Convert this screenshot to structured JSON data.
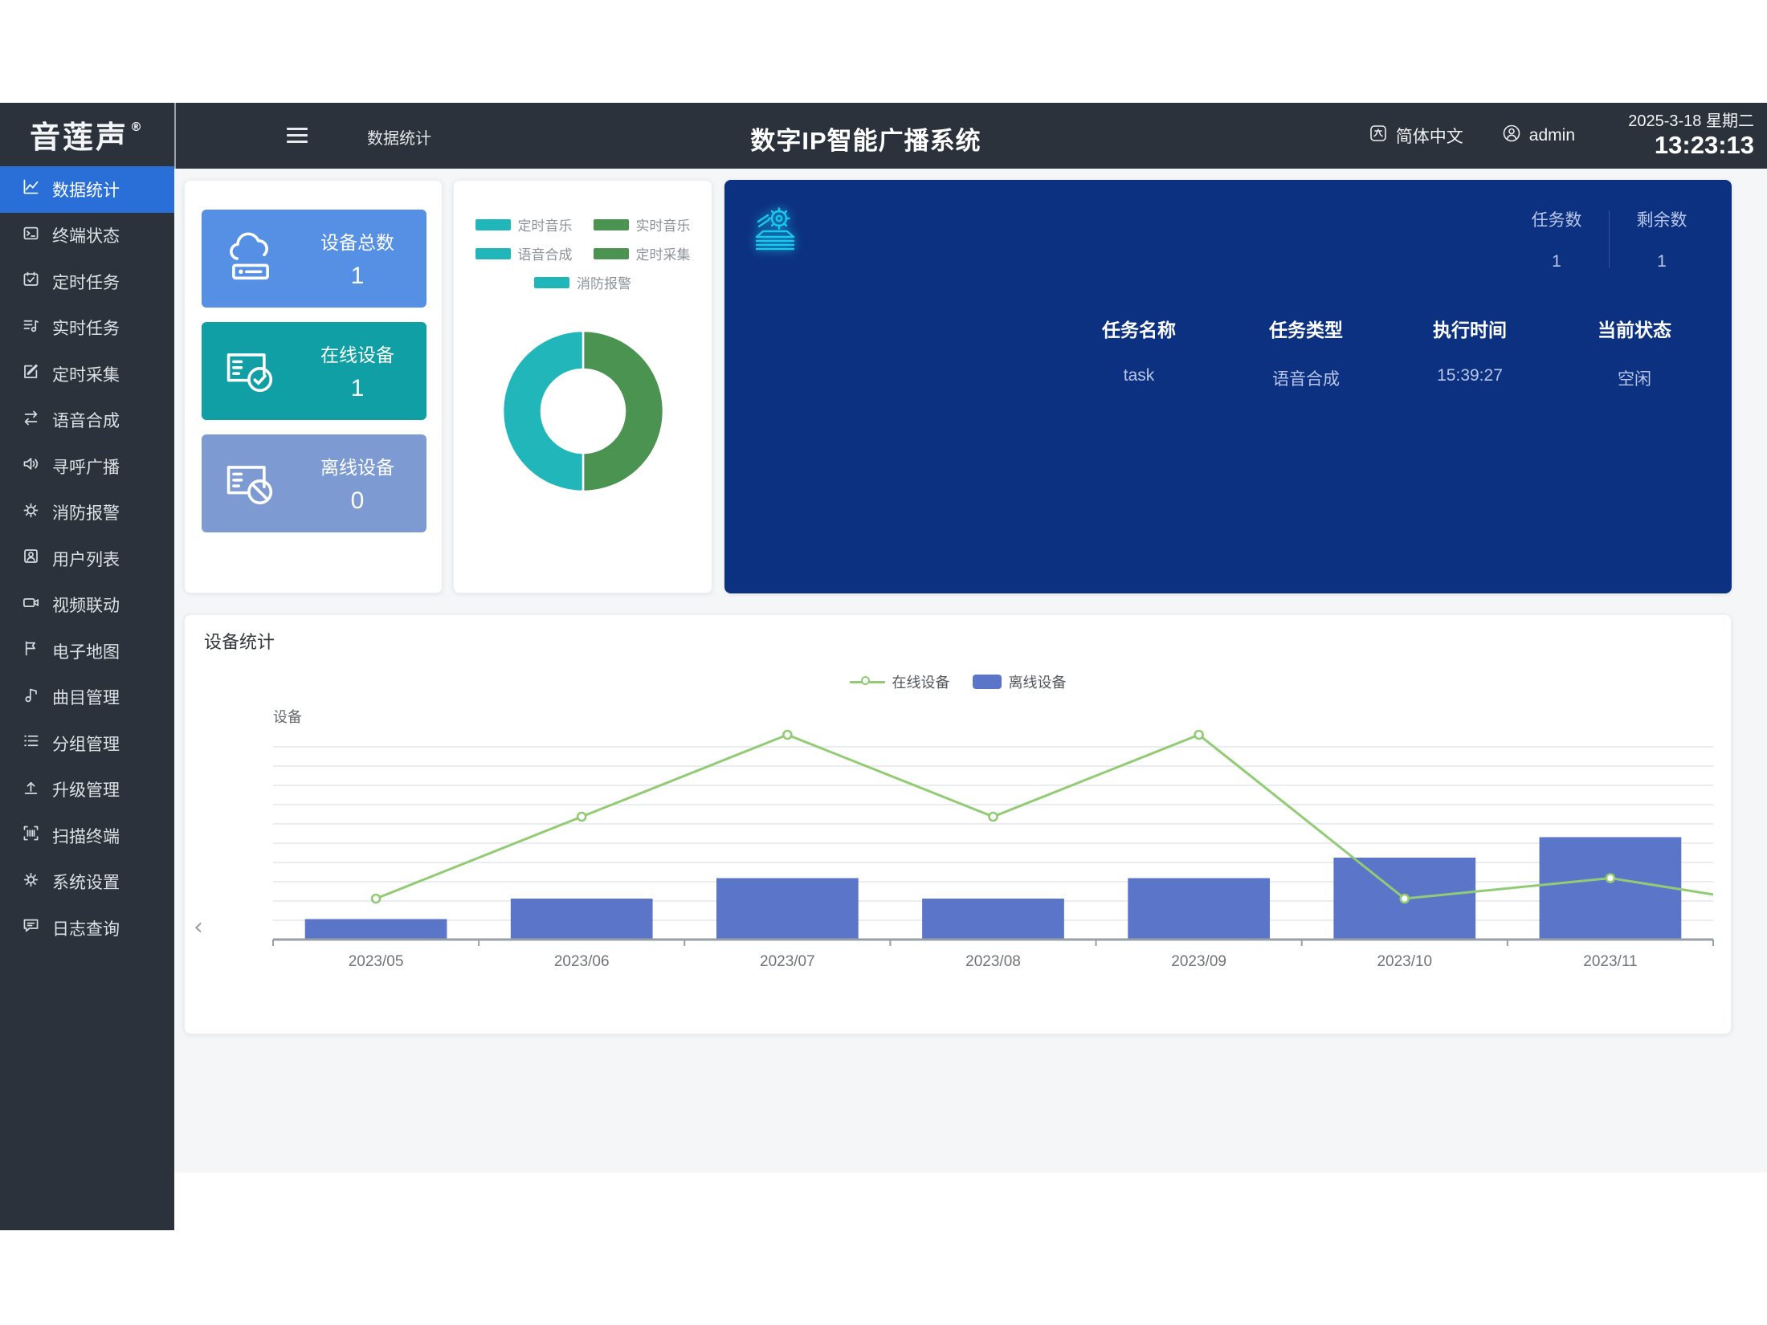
{
  "app": {
    "logo_text": "音莲声",
    "logo_reg": "®",
    "title": "数字IP智能广播系统",
    "breadcrumb": "数据统计",
    "language": "简体中文",
    "user": "admin",
    "date": "2025-3-18 星期二",
    "time": "13:23:13",
    "colors": {
      "dark": "#2b323b",
      "active_blue": "#2a6fd8",
      "navy": "#0c3180",
      "page_bg": "#f4f6f8"
    }
  },
  "sidebar": {
    "items": [
      {
        "label": "数据统计",
        "icon": "line-chart-icon",
        "active": true
      },
      {
        "label": "终端状态",
        "icon": "terminal-icon",
        "active": false
      },
      {
        "label": "定时任务",
        "icon": "calendar-check-icon",
        "active": false
      },
      {
        "label": "实时任务",
        "icon": "music-list-icon",
        "active": false
      },
      {
        "label": "定时采集",
        "icon": "edit-square-icon",
        "active": false
      },
      {
        "label": "语音合成",
        "icon": "swap-arrows-icon",
        "active": false
      },
      {
        "label": "寻呼广播",
        "icon": "speaker-icon",
        "active": false
      },
      {
        "label": "消防报警",
        "icon": "alarm-icon",
        "active": false
      },
      {
        "label": "用户列表",
        "icon": "user-card-icon",
        "active": false
      },
      {
        "label": "视频联动",
        "icon": "video-camera-icon",
        "active": false
      },
      {
        "label": "电子地图",
        "icon": "flag-icon",
        "active": false
      },
      {
        "label": "曲目管理",
        "icon": "music-note-icon",
        "active": false
      },
      {
        "label": "分组管理",
        "icon": "bullet-list-icon",
        "active": false
      },
      {
        "label": "升级管理",
        "icon": "upload-icon",
        "active": false
      },
      {
        "label": "扫描终端",
        "icon": "scan-icon",
        "active": false
      },
      {
        "label": "系统设置",
        "icon": "gear-icon",
        "active": false
      },
      {
        "label": "日志查询",
        "icon": "chat-log-icon",
        "active": false
      }
    ]
  },
  "stats": {
    "boxes": [
      {
        "label": "设备总数",
        "value": "1",
        "color": "#5590e4",
        "icon": "cloud-server-icon"
      },
      {
        "label": "在线设备",
        "value": "1",
        "color": "#0f9fa4",
        "icon": "monitor-check-icon"
      },
      {
        "label": "离线设备",
        "value": "0",
        "color": "#7d9bd2",
        "icon": "monitor-block-icon"
      }
    ]
  },
  "donut": {
    "legend": [
      {
        "label": "定时音乐",
        "color": "#21b6ba"
      },
      {
        "label": "实时音乐",
        "color": "#4a9350"
      },
      {
        "label": "语音合成",
        "color": "#21b6ba"
      },
      {
        "label": "定时采集",
        "color": "#4a9350"
      },
      {
        "label": "消防报警",
        "color": "#21b6ba"
      }
    ],
    "slices": [
      {
        "value": 50,
        "color": "#21b6ba"
      },
      {
        "value": 50,
        "color": "#4a9350"
      }
    ]
  },
  "tasks": {
    "icon": "task-stack-gear-icon",
    "counters": [
      {
        "label": "任务数",
        "value": "1"
      },
      {
        "label": "剩余数",
        "value": "1"
      }
    ],
    "columns": [
      "任务名称",
      "任务类型",
      "执行时间",
      "当前状态"
    ],
    "rows": [
      [
        "task",
        "语音合成",
        "15:39:27",
        "空闲"
      ]
    ]
  },
  "device_chart": {
    "title": "设备统计",
    "legend": [
      {
        "label": "在线设备",
        "type": "line",
        "color": "#91cc75"
      },
      {
        "label": "离线设备",
        "type": "bar",
        "color": "#5b75c9"
      }
    ]
  },
  "chart_data": {
    "type": "combo",
    "categories": [
      "2023/05",
      "2023/06",
      "2023/07",
      "2023/08",
      "2023/09",
      "2023/10",
      "2023/11"
    ],
    "series": [
      {
        "name": "在线设备",
        "type": "line",
        "color": "#91cc75",
        "values": [
          2,
          6,
          10,
          6,
          10,
          2,
          3
        ]
      },
      {
        "name": "离线设备",
        "type": "bar",
        "color": "#5b75c9",
        "values": [
          1,
          2,
          3,
          2,
          3,
          4,
          5
        ]
      }
    ],
    "trailing_line_end_value": 2.2,
    "title": "设备统计",
    "xlabel": "",
    "ylabel": "设备",
    "y_axis_name": "设备",
    "ylim": [
      0,
      10.5
    ],
    "grid": true,
    "legend_position": "top"
  }
}
